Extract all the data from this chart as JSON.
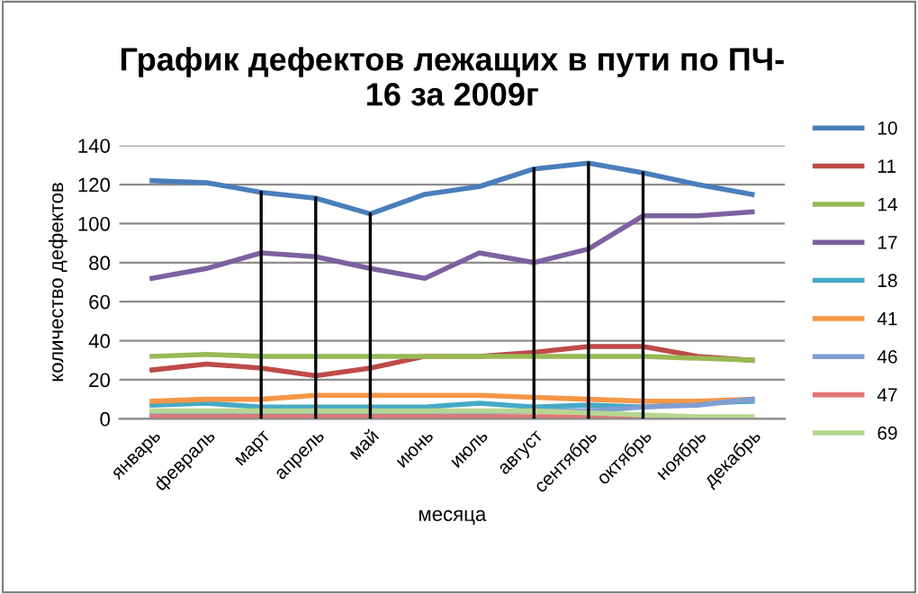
{
  "chart_data": {
    "type": "line",
    "title": "График дефектов лежащих в пути по ПЧ-\n16 за 2009г",
    "xlabel": "месяца",
    "ylabel": "количество дефектов",
    "categories": [
      "январь",
      "февраль",
      "март",
      "апрель",
      "май",
      "июнь",
      "июль",
      "август",
      "сентябрь",
      "октябрь",
      "ноябрь",
      "декабрь"
    ],
    "series": [
      {
        "name": "10",
        "color": "#4a7ebb",
        "values": [
          122,
          121,
          116,
          113,
          105,
          115,
          119,
          128,
          131,
          126,
          120,
          115
        ]
      },
      {
        "name": "11",
        "color": "#be4b48",
        "values": [
          25,
          28,
          26,
          22,
          26,
          32,
          32,
          34,
          37,
          37,
          32,
          30
        ]
      },
      {
        "name": "14",
        "color": "#98b954",
        "values": [
          32,
          33,
          32,
          32,
          32,
          32,
          32,
          32,
          32,
          32,
          31,
          30
        ]
      },
      {
        "name": "17",
        "color": "#7d60a0",
        "values": [
          72,
          77,
          85,
          83,
          77,
          72,
          85,
          80,
          87,
          104,
          104,
          106
        ]
      },
      {
        "name": "18",
        "color": "#46aac5",
        "values": [
          7,
          8,
          6,
          6,
          6,
          6,
          8,
          6,
          7,
          6,
          8,
          9
        ]
      },
      {
        "name": "41",
        "color": "#f79646",
        "values": [
          9,
          10,
          10,
          12,
          12,
          12,
          12,
          11,
          10,
          9,
          9,
          10
        ]
      },
      {
        "name": "46",
        "color": "#7f9fd4",
        "values": [
          3,
          3,
          3,
          3,
          3,
          3,
          3,
          4,
          4,
          6,
          7,
          10
        ]
      },
      {
        "name": "47",
        "color": "#e27674",
        "values": [
          1,
          1,
          1,
          1,
          1,
          1,
          1,
          1,
          1,
          1,
          null,
          null
        ]
      },
      {
        "name": "69",
        "color": "#b6d68f",
        "values": [
          4,
          4,
          4,
          4,
          4,
          4,
          4,
          4,
          3,
          2,
          1,
          1
        ]
      }
    ],
    "ref_lines": [
      {
        "axis": "x",
        "value": "март",
        "color": "#000000"
      },
      {
        "axis": "x",
        "value": "апрель",
        "color": "#000000"
      },
      {
        "axis": "x",
        "value": "май",
        "color": "#000000"
      },
      {
        "axis": "x",
        "value": "август",
        "color": "#000000"
      },
      {
        "axis": "x",
        "value": "сентябрь",
        "color": "#000000"
      },
      {
        "axis": "x",
        "value": "октябрь",
        "color": "#000000"
      }
    ],
    "ylim": [
      0,
      140
    ],
    "yticks": [
      0,
      20,
      40,
      60,
      80,
      100,
      120,
      140
    ],
    "grid": "y",
    "legend": "right",
    "marker": "none",
    "line_style": "solid"
  }
}
